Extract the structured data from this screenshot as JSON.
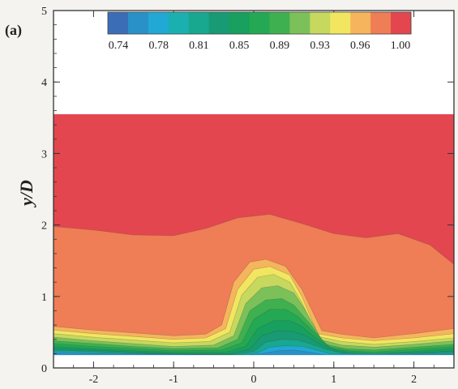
{
  "panel_label": "(a)",
  "chart_data": {
    "type": "heatmap",
    "title": "",
    "xlabel": "",
    "ylabel": "y/D",
    "xlim": [
      -2.5,
      2.5
    ],
    "ylim": [
      0,
      5
    ],
    "x_ticks": [
      -2,
      -1,
      0,
      1,
      2
    ],
    "x_tick_labels": [
      "-2",
      "-1",
      "0",
      "1",
      "2"
    ],
    "y_ticks": [
      0,
      1,
      2,
      3,
      4,
      5
    ],
    "y_tick_labels": [
      "0",
      "1",
      "2",
      "3",
      "4",
      "5"
    ],
    "data_region_y": [
      0.18,
      3.55
    ],
    "colorbar": {
      "levels": [
        0.74,
        0.76,
        0.78,
        0.8,
        0.81,
        0.83,
        0.85,
        0.87,
        0.89,
        0.91,
        0.93,
        0.94,
        0.96,
        0.98,
        1.0
      ],
      "colors": [
        "#3a6db5",
        "#2a90c8",
        "#21a8d5",
        "#1ab0b0",
        "#17a88f",
        "#189a74",
        "#17a05e",
        "#24a853",
        "#3fb04f",
        "#7cc05a",
        "#c6d85e",
        "#f2e660",
        "#f6b45c",
        "#ef7d55",
        "#e3464f"
      ],
      "tick_labels": [
        "0.74",
        "0.78",
        "0.81",
        "0.85",
        "0.89",
        "0.93",
        "0.96",
        "1.00"
      ]
    },
    "contours": [
      {
        "level": 0.98,
        "x": [
          -2.5,
          -2.0,
          -1.5,
          -1.0,
          -0.6,
          -0.2,
          0.2,
          0.6,
          1.0,
          1.4,
          1.8,
          2.2,
          2.5
        ],
        "y": [
          1.98,
          1.93,
          1.86,
          1.85,
          1.95,
          2.1,
          2.15,
          2.02,
          1.88,
          1.82,
          1.88,
          1.72,
          1.45
        ]
      },
      {
        "level": 0.96,
        "x": [
          -2.5,
          -2.0,
          -1.5,
          -1.0,
          -0.6,
          -0.4,
          -0.25,
          -0.05,
          0.15,
          0.4,
          0.6,
          0.85,
          1.1,
          1.5,
          2.0,
          2.5
        ],
        "y": [
          0.58,
          0.53,
          0.49,
          0.45,
          0.47,
          0.6,
          1.2,
          1.48,
          1.52,
          1.42,
          1.1,
          0.52,
          0.47,
          0.42,
          0.48,
          0.55
        ]
      },
      {
        "level": 0.94,
        "x": [
          -2.5,
          -2.0,
          -1.5,
          -1.0,
          -0.6,
          -0.35,
          -0.2,
          0.0,
          0.2,
          0.45,
          0.6,
          0.8,
          1.1,
          1.5,
          2.0,
          2.5
        ],
        "y": [
          0.53,
          0.48,
          0.44,
          0.4,
          0.42,
          0.55,
          1.1,
          1.38,
          1.42,
          1.3,
          1.0,
          0.48,
          0.42,
          0.38,
          0.42,
          0.48
        ]
      },
      {
        "level": 0.93,
        "x": [
          -2.5,
          -2.0,
          -1.5,
          -1.0,
          -0.55,
          -0.3,
          -0.15,
          0.05,
          0.25,
          0.45,
          0.6,
          0.8,
          1.1,
          1.5,
          2.0,
          2.5
        ],
        "y": [
          0.48,
          0.43,
          0.39,
          0.35,
          0.37,
          0.5,
          1.02,
          1.27,
          1.31,
          1.2,
          0.92,
          0.44,
          0.37,
          0.33,
          0.37,
          0.42
        ]
      },
      {
        "level": 0.91,
        "x": [
          -2.5,
          -2.0,
          -1.5,
          -1.0,
          -0.5,
          -0.25,
          -0.1,
          0.1,
          0.3,
          0.5,
          0.65,
          0.85,
          1.1,
          1.5,
          2.0,
          2.5
        ],
        "y": [
          0.43,
          0.38,
          0.34,
          0.3,
          0.32,
          0.45,
          0.9,
          1.12,
          1.15,
          1.05,
          0.8,
          0.39,
          0.32,
          0.29,
          0.33,
          0.38
        ]
      },
      {
        "level": 0.89,
        "x": [
          -2.5,
          -2.0,
          -1.5,
          -1.0,
          -0.45,
          -0.2,
          -0.05,
          0.15,
          0.35,
          0.5,
          0.7,
          0.9,
          1.15,
          1.5,
          2.0,
          2.5
        ],
        "y": [
          0.38,
          0.34,
          0.3,
          0.27,
          0.28,
          0.4,
          0.8,
          0.95,
          0.97,
          0.88,
          0.62,
          0.33,
          0.27,
          0.25,
          0.29,
          0.33
        ]
      },
      {
        "level": 0.87,
        "x": [
          -2.5,
          -2.0,
          -1.5,
          -1.0,
          -0.4,
          -0.15,
          0.0,
          0.2,
          0.4,
          0.55,
          0.75,
          0.95,
          1.2,
          1.5,
          2.0,
          2.5
        ],
        "y": [
          0.34,
          0.3,
          0.27,
          0.24,
          0.25,
          0.35,
          0.68,
          0.82,
          0.82,
          0.72,
          0.5,
          0.29,
          0.24,
          0.22,
          0.26,
          0.3
        ]
      },
      {
        "level": 0.85,
        "x": [
          -2.5,
          -2.0,
          -1.5,
          -1.0,
          -0.35,
          -0.1,
          0.05,
          0.25,
          0.45,
          0.6,
          0.8,
          1.0,
          1.2,
          1.5,
          2.0,
          2.5
        ],
        "y": [
          0.3,
          0.27,
          0.24,
          0.22,
          0.22,
          0.3,
          0.55,
          0.66,
          0.66,
          0.58,
          0.4,
          0.26,
          0.22,
          0.2,
          0.23,
          0.27
        ]
      },
      {
        "level": 0.83,
        "x": [
          -2.5,
          -2.0,
          -1.5,
          -1.0,
          -0.3,
          -0.05,
          0.1,
          0.3,
          0.5,
          0.65,
          0.85,
          1.05,
          1.2,
          1.5,
          2.0,
          2.5
        ],
        "y": [
          0.27,
          0.25,
          0.22,
          0.2,
          0.2,
          0.26,
          0.45,
          0.52,
          0.51,
          0.45,
          0.32,
          0.23,
          0.2,
          0.19,
          0.21,
          0.24
        ]
      },
      {
        "level": 0.81,
        "x": [
          -2.5,
          -2.0,
          -1.5,
          -1.0,
          -0.25,
          0.0,
          0.15,
          0.35,
          0.55,
          0.7,
          0.9,
          1.1,
          1.5,
          2.0,
          2.5
        ],
        "y": [
          0.25,
          0.23,
          0.21,
          0.19,
          0.19,
          0.23,
          0.36,
          0.4,
          0.39,
          0.34,
          0.26,
          0.21,
          0.18,
          0.2,
          0.22
        ]
      },
      {
        "level": 0.78,
        "x": [
          -2.5,
          -2.0,
          -1.5,
          -0.2,
          0.05,
          0.2,
          0.4,
          0.6,
          0.75,
          0.95,
          2.5
        ],
        "y": [
          0.23,
          0.21,
          0.2,
          0.18,
          0.21,
          0.29,
          0.31,
          0.3,
          0.26,
          0.2,
          0.2
        ]
      },
      {
        "level": 0.76,
        "x": [
          -2.5,
          -2.0,
          -0.1,
          0.1,
          0.3,
          0.5,
          0.7,
          0.9,
          2.5
        ],
        "y": [
          0.21,
          0.2,
          0.18,
          0.2,
          0.24,
          0.25,
          0.22,
          0.18,
          0.19
        ]
      }
    ]
  }
}
